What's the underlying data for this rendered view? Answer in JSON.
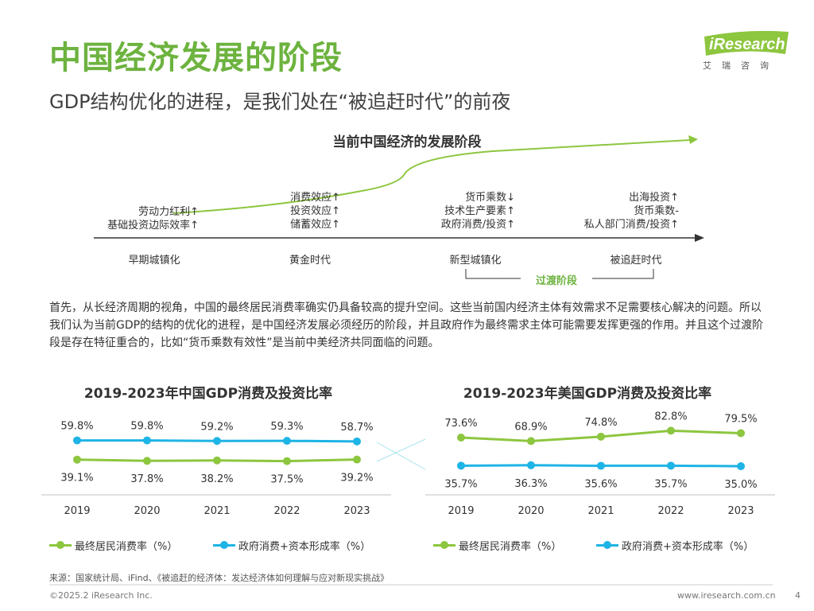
{
  "header": {
    "title": "中国经济发展的阶段",
    "subtitle": "GDP结构优化的进程，是我们处在“被追赶时代”的前夜"
  },
  "logo": {
    "brand": "iResearch",
    "cn": "艾瑞咨询"
  },
  "stage_diagram": {
    "title": "当前中国经济的发展阶段",
    "columns": [
      {
        "lines": [
          "劳动力红利↑",
          "基础投资边际效率↑"
        ]
      },
      {
        "lines": [
          "消费效应↑",
          "投资效应↑",
          "储蓄效应↑"
        ]
      },
      {
        "lines": [
          "货币乘数↓",
          "技术生产要素↑",
          "政府消费/投资↑"
        ]
      },
      {
        "lines": [
          "出海投资↑",
          "货币乘数-",
          "私人部门消费/投资↑"
        ]
      }
    ],
    "stages": [
      "早期城镇化",
      "黄金时代",
      "新型城镇化",
      "被追赶时代"
    ],
    "transition_label": "过渡阶段"
  },
  "paragraph": "首先，从长经济周期的视角，中国的最终居民消费率确实仍具备较高的提升空间。这些当前国内经济主体有效需求不足需要核心解决的问题。所以我们认为当前GDP的结构的优化的进程，是中国经济发展必须经历的阶段，并且政府作为最终需求主体可能需要发挥更强的作用。并且这个过渡阶段是存在特征重合的，比如“货币乘数有效性”是当前中美经济共同面临的问题。",
  "colors": {
    "green": "#8dc63f",
    "blue": "#1eb4e6",
    "brand_green": "#6db33f"
  },
  "chart_data": [
    {
      "type": "line",
      "title": "2019-2023年中国GDP消费及投资比率",
      "categories": [
        "2019",
        "2020",
        "2021",
        "2022",
        "2023"
      ],
      "series": [
        {
          "name": "最终居民消费率（%）",
          "values": [
            39.1,
            37.8,
            38.2,
            37.5,
            39.2
          ],
          "labels": [
            "39.1%",
            "37.8%",
            "38.2%",
            "37.5%",
            "39.2%"
          ]
        },
        {
          "name": "政府消费+资本形成率（%）",
          "values": [
            59.8,
            59.8,
            59.2,
            59.3,
            58.7
          ],
          "labels": [
            "59.8%",
            "59.8%",
            "59.2%",
            "59.3%",
            "58.7%"
          ]
        }
      ],
      "grid": false
    },
    {
      "type": "line",
      "title": "2019-2023年美国GDP消费及投资比率",
      "categories": [
        "2019",
        "2020",
        "2021",
        "2022",
        "2023"
      ],
      "series": [
        {
          "name": "最终居民消费率（%）",
          "values": [
            73.6,
            68.9,
            74.8,
            82.8,
            79.5
          ],
          "labels": [
            "73.6%",
            "68.9%",
            "74.8%",
            "82.8%",
            "79.5%"
          ]
        },
        {
          "name": "政府消费+资本形成率（%）",
          "values": [
            35.7,
            36.3,
            35.6,
            35.7,
            35.0
          ],
          "labels": [
            "35.7%",
            "36.3%",
            "35.6%",
            "35.7%",
            "35.0%"
          ]
        }
      ],
      "grid": false
    }
  ],
  "source": "来源：国家统计局、iFind、《被追赶的经济体：发达经济体如何理解与应对新现实挑战》",
  "footer": {
    "copyright": "©2025.2 iResearch Inc.",
    "website": "www.iresearch.com.cn",
    "page": "4"
  }
}
